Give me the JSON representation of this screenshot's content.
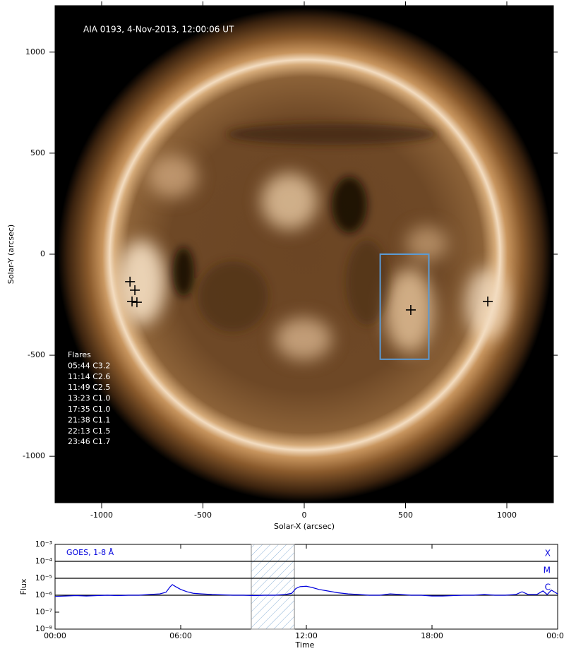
{
  "chart_data": [
    {
      "type": "image-scatter",
      "title": "AIA 0193, 4-Nov-2013, 12:00:06 UT",
      "xlabel": "Solar-X (arcsec)",
      "ylabel": "Solar-Y (arcsec)",
      "xlim": [
        -1230,
        1230
      ],
      "ylim": [
        -1230,
        1230
      ],
      "xticks": [
        -1000,
        -500,
        0,
        500,
        1000
      ],
      "yticks": [
        -1000,
        -500,
        0,
        500,
        1000
      ],
      "x": [
        -860,
        -836,
        -850,
        -826,
        526,
        906
      ],
      "y": [
        -136,
        -178,
        -234,
        -238,
        -276,
        -234
      ],
      "color": "#000000",
      "region": {
        "xlim": [
          375,
          615
        ],
        "ylim": [
          -520,
          0
        ],
        "color": "#5b9bd5"
      },
      "annotation": [
        "Flares",
        "05:44 C3.2",
        "11:14 C2.6",
        "11:49 C2.5",
        "13:23 C1.0",
        "17:35 C1.0",
        "21:38 C1.1",
        "22:13 C1.5",
        "23:46 C1.7"
      ]
    },
    {
      "type": "line",
      "xlabel": "Time",
      "ylabel": "Flux",
      "log_y": true,
      "xlim": [
        0,
        24
      ],
      "ylim": [
        1e-08,
        0.001
      ],
      "xticks": [
        {
          "value": 0,
          "label": "00:00"
        },
        {
          "value": 6,
          "label": "06:00"
        },
        {
          "value": 12,
          "label": "12:00"
        },
        {
          "value": 18,
          "label": "18:00"
        },
        {
          "value": 24,
          "label": "00:00"
        }
      ],
      "yticks": [
        {
          "value": 1e-08,
          "label": "10⁻⁸"
        },
        {
          "value": 1e-07,
          "label": "10⁻⁷"
        },
        {
          "value": 1e-06,
          "label": "10⁻⁶"
        },
        {
          "value": 1e-05,
          "label": "10⁻⁵"
        },
        {
          "value": 0.0001,
          "label": "10⁻⁴"
        },
        {
          "value": 0.001,
          "label": "10⁻³"
        }
      ],
      "levels": [
        {
          "value": 0.0001,
          "label": "X"
        },
        {
          "value": 1e-05,
          "label": "M"
        },
        {
          "value": 1e-06,
          "label": "C"
        }
      ],
      "shaded": [
        9.37,
        11.43
      ],
      "x": [
        0,
        0.5,
        1,
        1.5,
        2,
        2.5,
        3,
        3.5,
        4,
        4.5,
        5,
        5.3,
        5.5,
        5.6,
        5.8,
        6,
        6.3,
        6.6,
        7,
        7.5,
        8,
        8.5,
        9,
        9.5,
        10,
        10.5,
        11,
        11.3,
        11.5,
        11.7,
        12,
        12.3,
        12.6,
        13,
        13.5,
        14,
        14.5,
        15,
        15.5,
        16,
        16.5,
        17,
        17.5,
        18,
        18.5,
        19,
        19.5,
        20,
        20.5,
        21,
        21.5,
        22,
        22.3,
        22.6,
        23,
        23.3,
        23.5,
        23.7,
        24
      ],
      "series": [
        {
          "name": "GOES, 1-8 Å",
          "color": "#0000dd",
          "values": [
            8.5e-07,
            9e-07,
            9.5e-07,
            9e-07,
            9.5e-07,
            1e-06,
            9.5e-07,
            1e-06,
            1e-06,
            1.1e-06,
            1.2e-06,
            1.5e-06,
            3.2e-06,
            4.2e-06,
            3e-06,
            2.2e-06,
            1.6e-06,
            1.3e-06,
            1.2e-06,
            1.1e-06,
            1.05e-06,
            1e-06,
            1e-06,
            9.5e-07,
            1e-06,
            1e-06,
            1.1e-06,
            1.3e-06,
            2.5e-06,
            3.2e-06,
            3.4e-06,
            2.8e-06,
            2.2e-06,
            1.8e-06,
            1.4e-06,
            1.2e-06,
            1.1e-06,
            1e-06,
            1e-06,
            1.2e-06,
            1.1e-06,
            1e-06,
            1e-06,
            9e-07,
            9e-07,
            9.5e-07,
            1e-06,
            1e-06,
            1.1e-06,
            1e-06,
            1e-06,
            1.1e-06,
            1.6e-06,
            1.1e-06,
            1.1e-06,
            1.8e-06,
            1.1e-06,
            2e-06,
            1.2e-06
          ]
        }
      ]
    }
  ]
}
